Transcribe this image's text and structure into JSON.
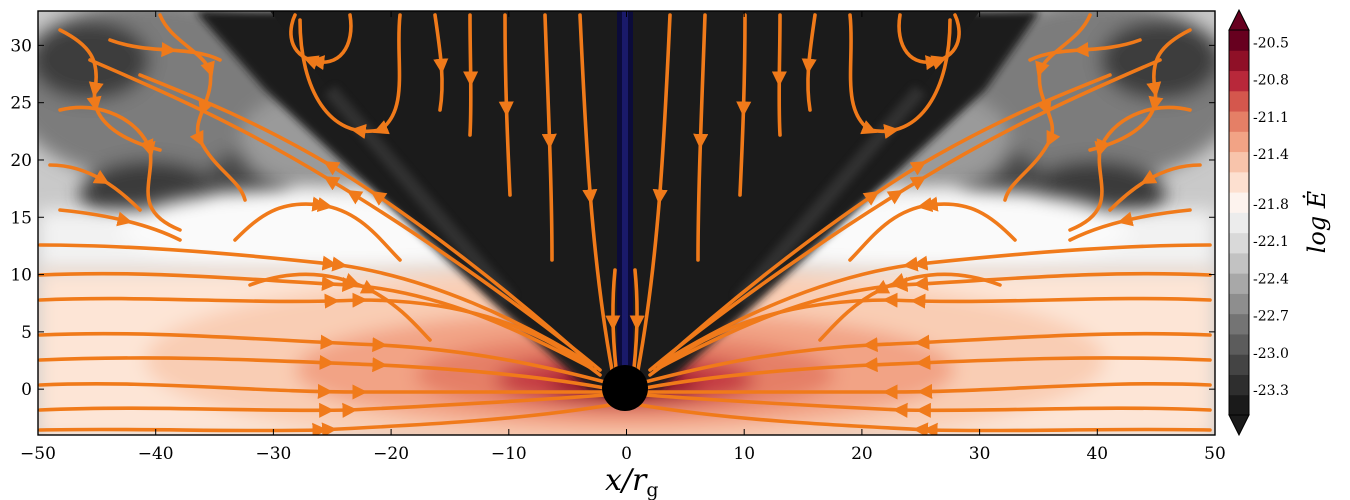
{
  "chart_data": {
    "type": "heatmap",
    "title": "",
    "xlabel": "x/r",
    "xlabel_sub": "g",
    "ylabel": "",
    "xlim": [
      -50,
      50
    ],
    "ylim": [
      -4,
      33
    ],
    "x_ticks": [
      "−50",
      "−40",
      "−30",
      "−20",
      "−10",
      "0",
      "10",
      "20",
      "30",
      "40",
      "50"
    ],
    "x_tick_values": [
      -50,
      -40,
      -30,
      -20,
      -10,
      0,
      10,
      20,
      30,
      40,
      50
    ],
    "y_ticks": [
      "0",
      "5",
      "10",
      "15",
      "20",
      "25",
      "30"
    ],
    "y_tick_values": [
      0,
      5,
      10,
      15,
      20,
      25,
      30
    ],
    "colorbar": {
      "label": "log Ė",
      "ticks": [
        "-20.5",
        "-20.8",
        "-21.1",
        "-21.4",
        "-21.8",
        "-22.1",
        "-22.4",
        "-22.7",
        "-23.0",
        "-23.3"
      ],
      "tick_values": [
        -20.5,
        -20.8,
        -21.1,
        -21.4,
        -21.8,
        -22.1,
        -22.4,
        -22.7,
        -23.0,
        -23.3
      ],
      "min": -23.5,
      "max": -20.4,
      "extend": "both",
      "colors": [
        "#1a1a1a",
        "#2e2e2e",
        "#444444",
        "#5c5c5c",
        "#747474",
        "#8e8e8e",
        "#a8a8a8",
        "#c2c2c2",
        "#d9d9d9",
        "#ececec",
        "#fdf3ee",
        "#fde0d0",
        "#f8c4ab",
        "#f2a385",
        "#e57f66",
        "#d4574d",
        "#b8283a",
        "#8f1027",
        "#67001f"
      ]
    },
    "overlay": "magnetic field streamlines (orange)",
    "streamline_color": "#f07a1a",
    "black_hole_radius": 2,
    "jet_color": "#0b0b3a"
  }
}
